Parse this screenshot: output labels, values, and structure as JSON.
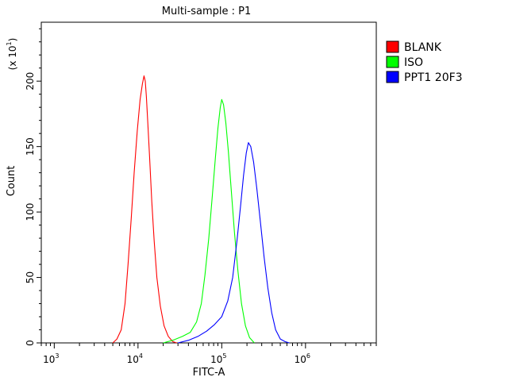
{
  "chart_data": {
    "type": "line",
    "title": "Multi-sample : P1",
    "xlabel": "FITC-A",
    "ylabel": "Count",
    "y_multiplier_label": "(x 10",
    "y_multiplier_exponent": "1",
    "xscale": "log",
    "xlim": [
      700,
      7000000
    ],
    "ylim": [
      0,
      245
    ],
    "x_ticks": [
      {
        "base": "10",
        "exp": "3",
        "value": 1000
      },
      {
        "base": "10",
        "exp": "4",
        "value": 10000
      },
      {
        "base": "10",
        "exp": "5",
        "value": 100000
      },
      {
        "base": "10",
        "exp": "6",
        "value": 1000000
      }
    ],
    "y_ticks": [
      0,
      50,
      100,
      150,
      200
    ],
    "grid": false,
    "legend_position": "top-right",
    "series": [
      {
        "name": "BLANK",
        "color": "#ff0000",
        "x": [
          5000,
          5600,
          6300,
          7000,
          7600,
          8300,
          9000,
          9800,
          10600,
          11300,
          11800,
          12200,
          12600,
          13100,
          13800,
          14600,
          15600,
          16800,
          18500,
          20500,
          23000,
          26000,
          29000
        ],
        "y": [
          0,
          3,
          10,
          30,
          60,
          95,
          130,
          162,
          186,
          198,
          204,
          200,
          188,
          168,
          140,
          108,
          78,
          50,
          28,
          13,
          5,
          1,
          0
        ]
      },
      {
        "name": "ISO",
        "color": "#00ff00",
        "x": [
          20000,
          26000,
          34000,
          42000,
          50000,
          57000,
          63000,
          70000,
          77000,
          84000,
          90000,
          96000,
          100000,
          105000,
          112000,
          120000,
          130000,
          142000,
          156000,
          172000,
          192000,
          215000,
          245000
        ],
        "y": [
          0,
          2,
          5,
          8,
          16,
          30,
          52,
          80,
          112,
          142,
          164,
          180,
          186,
          182,
          168,
          146,
          116,
          84,
          55,
          30,
          13,
          4,
          0
        ]
      },
      {
        "name": "PPT1 20F3",
        "color": "#0000ff",
        "x": [
          30000,
          40000,
          52000,
          66000,
          82000,
          100000,
          118000,
          135000,
          152000,
          168000,
          182000,
          196000,
          208000,
          222000,
          240000,
          262000,
          290000,
          320000,
          355000,
          395000,
          440000,
          500000,
          570000,
          640000
        ],
        "y": [
          0,
          2,
          5,
          9,
          14,
          20,
          32,
          50,
          78,
          105,
          128,
          145,
          153,
          150,
          138,
          118,
          92,
          66,
          42,
          23,
          10,
          3,
          1,
          0
        ]
      }
    ]
  }
}
